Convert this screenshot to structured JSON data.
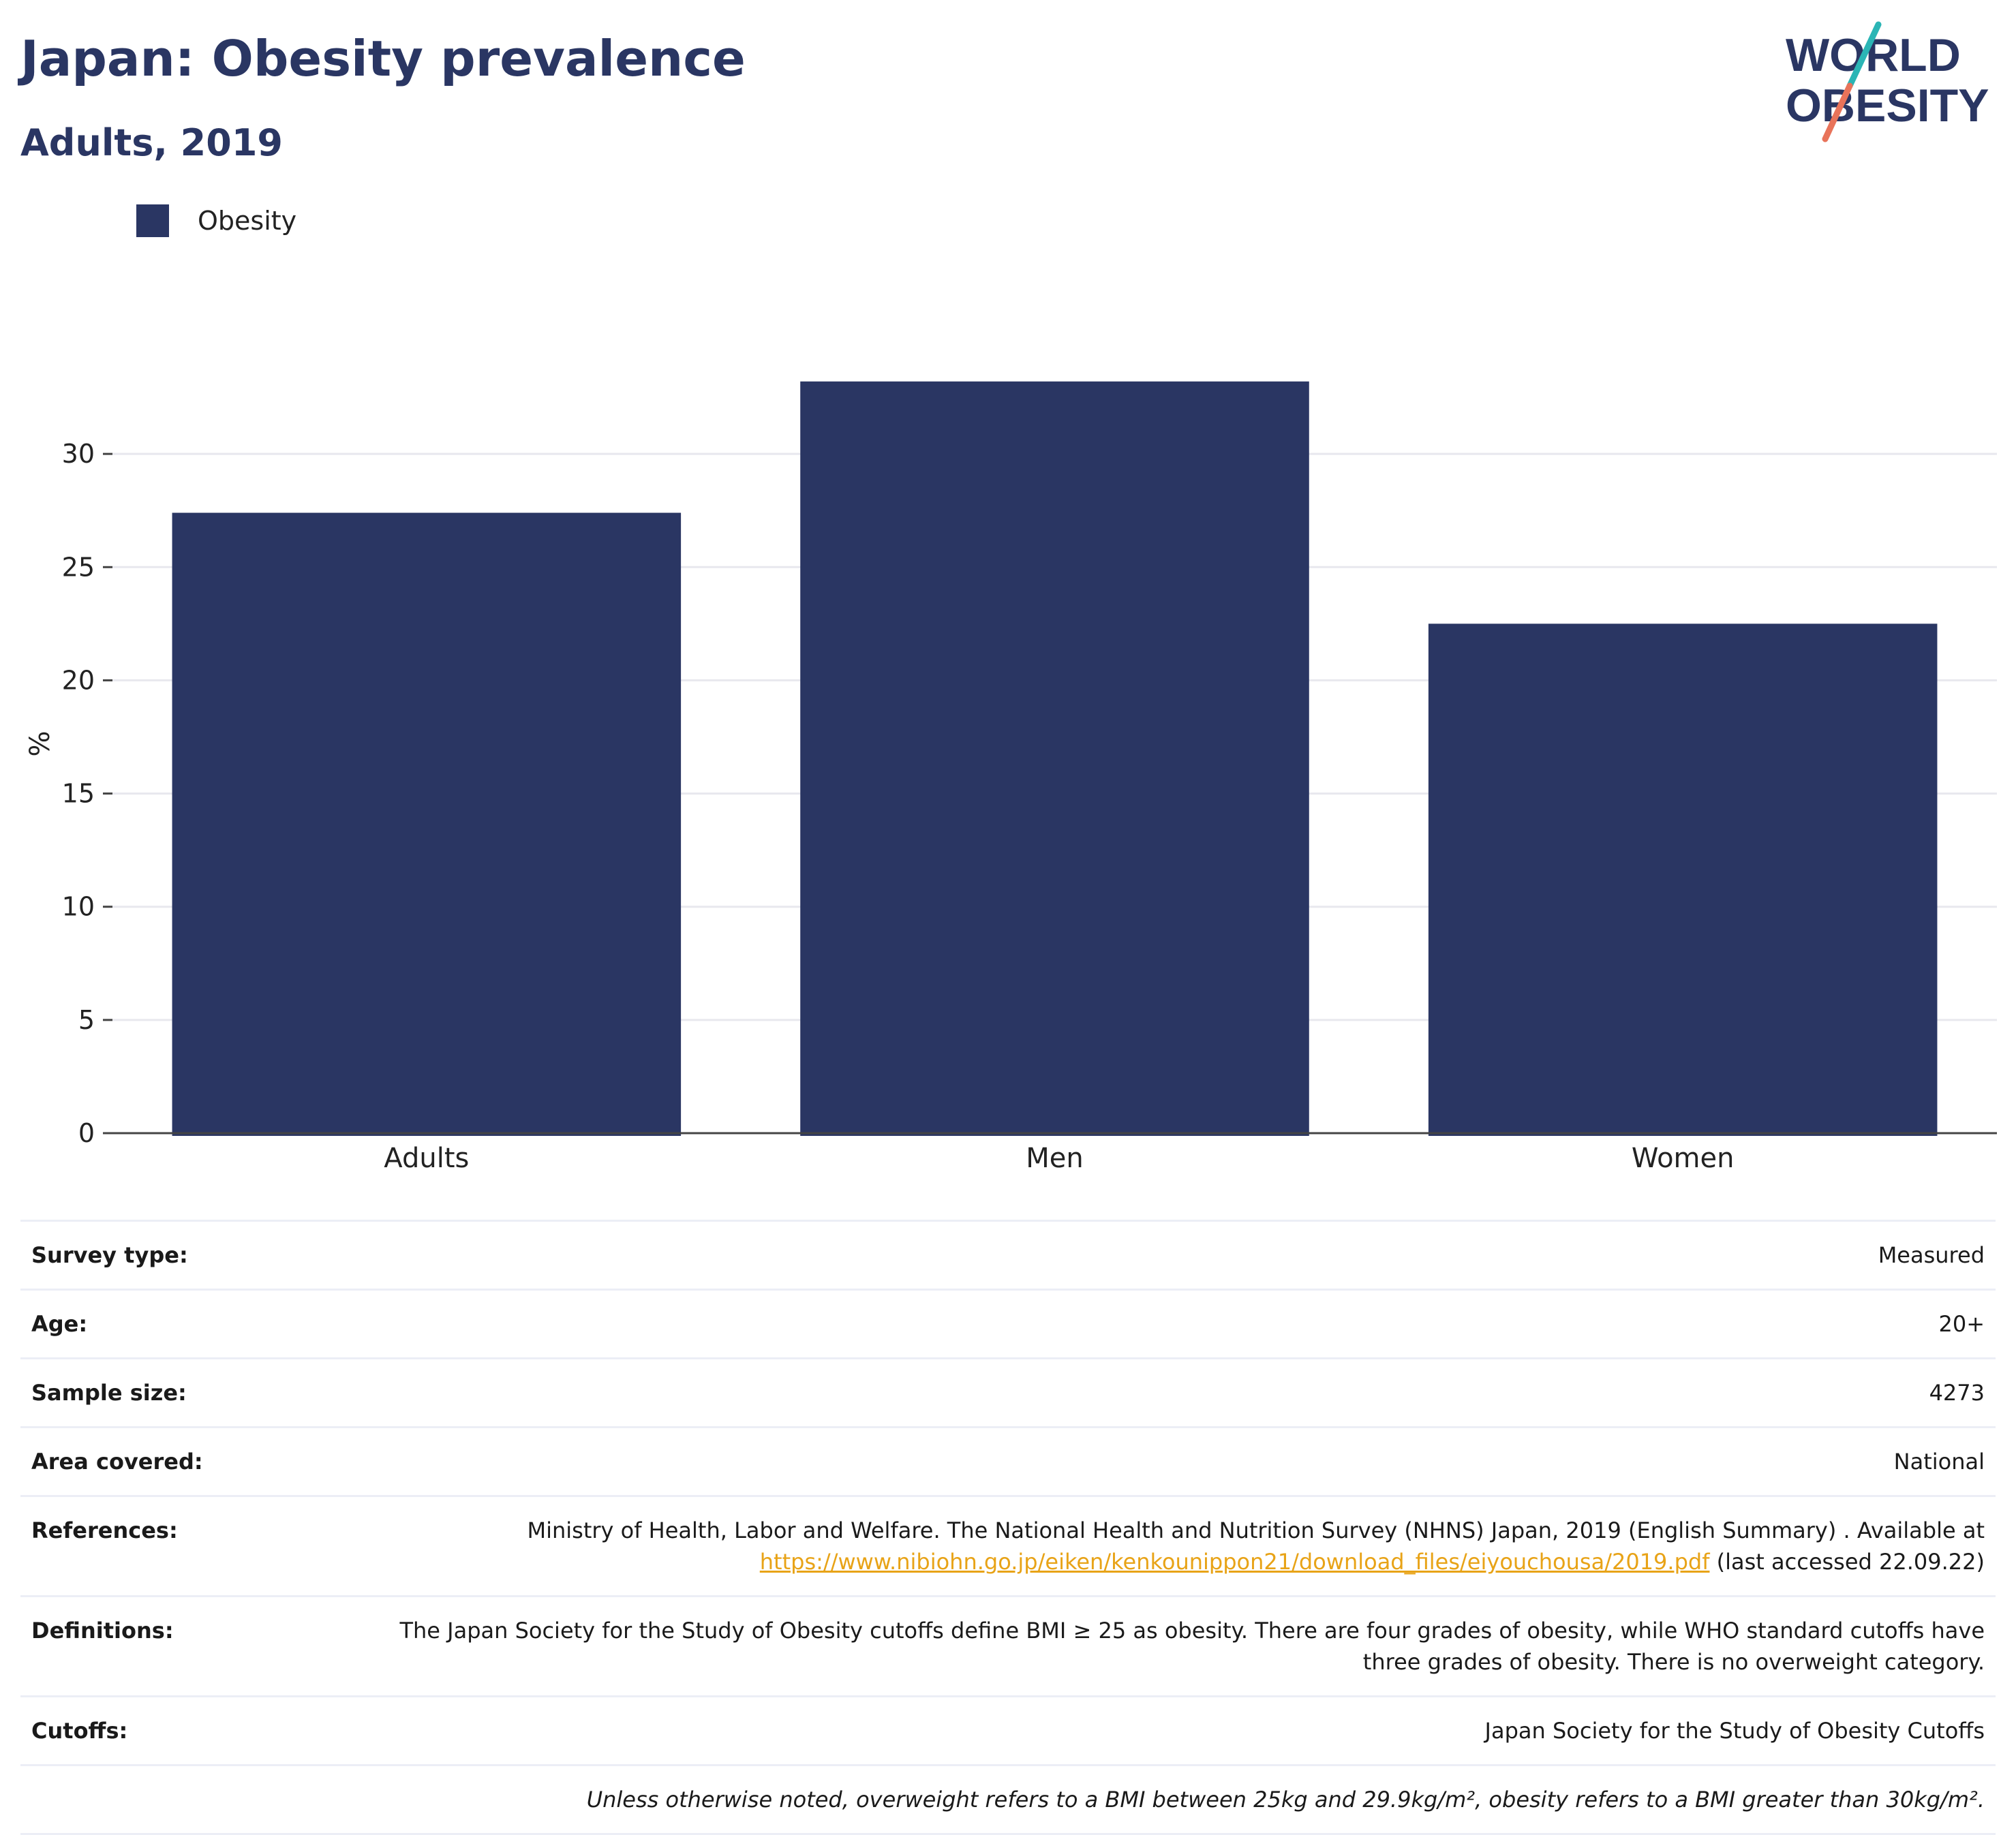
{
  "header": {
    "title": "Japan: Obesity prevalence",
    "subtitle": "Adults, 2019"
  },
  "logo": {
    "line1": "WORLD",
    "line2": "OBESITY",
    "accent_teal": "#2bb5b5",
    "accent_coral": "#e8735a",
    "text_color": "#2a3663"
  },
  "legend": {
    "label": "Obesity",
    "color": "#2a3663"
  },
  "chart_data": {
    "type": "bar",
    "categories": [
      "Adults",
      "Men",
      "Women"
    ],
    "series": [
      {
        "name": "Obesity",
        "values": [
          27.4,
          33.2,
          22.5
        ],
        "color": "#2a3663"
      }
    ],
    "ylabel": "%",
    "xlabel": "",
    "ylim": [
      0,
      35
    ],
    "yticks": [
      0,
      5,
      10,
      15,
      20,
      25,
      30
    ],
    "grid": true,
    "legend_position": "top-left"
  },
  "meta": {
    "survey_type_label": "Survey type:",
    "survey_type": "Measured",
    "age_label": "Age:",
    "age": "20+",
    "sample_size_label": "Sample size:",
    "sample_size": "4273",
    "area_label": "Area covered:",
    "area": "National",
    "references_label": "References:",
    "references_text": "Ministry of Health, Labor and Welfare. The National Health and Nutrition Survey (NHNS) Japan, 2019 (English Summary) . Available at",
    "references_link": "https://www.nibiohn.go.jp/eiken/kenkounippon21/download_files/eiyouchousa/2019.pdf",
    "references_suffix": "(last accessed 22.09.22)",
    "definitions_label": "Definitions:",
    "definitions": "The Japan Society for the Study of Obesity cutoffs define BMI ≥ 25 as obesity. There are four grades of obesity, while WHO standard cutoffs have three grades of obesity. There is no overweight category.",
    "cutoffs_label": "Cutoffs:",
    "cutoffs": "Japan Society for the Study of Obesity Cutoffs",
    "note": "Unless otherwise noted, overweight refers to a BMI between 25kg and 29.9kg/m², obesity refers to a BMI greater than 30kg/m²."
  }
}
